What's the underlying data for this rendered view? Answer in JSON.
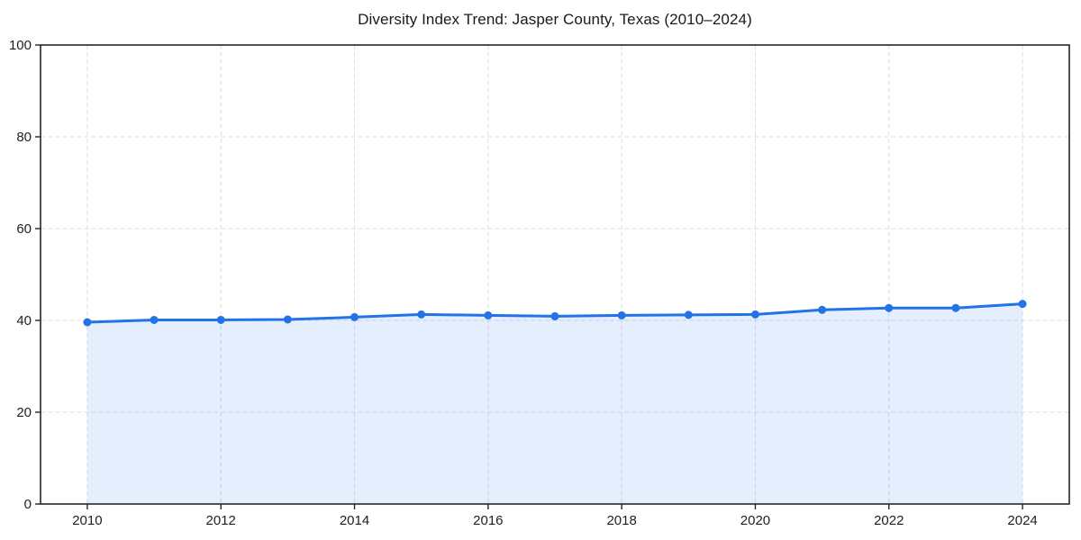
{
  "title": "Diversity Index Trend: Jasper County, Texas (2010–2024)",
  "colors": {
    "line": "#2272e8",
    "marker": "#2272e8",
    "fill": "#2272e8",
    "fill_opacity": 0.12,
    "grid": "#dedede",
    "axis": "#262626",
    "text": "#1f1f1f",
    "background": "#ffffff"
  },
  "chart_data": {
    "type": "line",
    "title": "Diversity Index Trend: Jasper County, Texas (2010–2024)",
    "xlabel": "",
    "ylabel": "",
    "x": [
      2010,
      2011,
      2012,
      2013,
      2014,
      2015,
      2016,
      2017,
      2018,
      2019,
      2020,
      2021,
      2022,
      2023,
      2024
    ],
    "series": [
      {
        "name": "Diversity Index",
        "values": [
          39.6,
          40.1,
          40.1,
          40.2,
          40.7,
          41.3,
          41.1,
          40.9,
          41.1,
          41.2,
          41.3,
          42.3,
          42.7,
          42.7,
          43.6
        ]
      }
    ],
    "xticks": [
      2010,
      2012,
      2014,
      2016,
      2018,
      2020,
      2022,
      2024
    ],
    "yticks": [
      0,
      20,
      40,
      60,
      80,
      100
    ],
    "xlim": [
      2009.3,
      2024.7
    ],
    "ylim": [
      0,
      100
    ],
    "grid": true,
    "grid_style": "dashed",
    "area_fill": true,
    "marker": "circle",
    "legend": "none"
  }
}
